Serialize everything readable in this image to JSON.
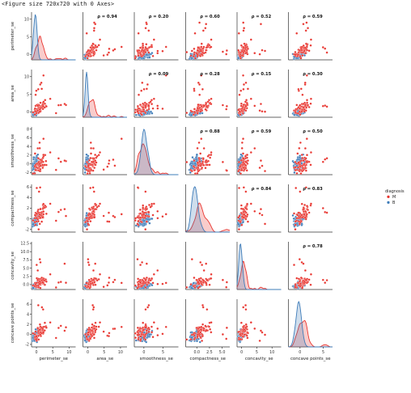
{
  "figure_caption": "<Figure size 720x720 with 0 Axes>",
  "chart_data": {
    "type": "scatter",
    "variables": [
      "perimeter_se",
      "area_se",
      "smoothness_se",
      "compactness_se",
      "concavity_se",
      "concave points_se"
    ],
    "hue": "diagnosis",
    "classes": [
      {
        "name": "M",
        "color": "#e8352f"
      },
      {
        "name": "B",
        "color": "#3e7cb9"
      }
    ],
    "correlations": [
      {
        "row": 0,
        "col": 1,
        "label": "ρ = 0.94"
      },
      {
        "row": 0,
        "col": 2,
        "label": "ρ = 0.20"
      },
      {
        "row": 0,
        "col": 3,
        "label": "ρ = 0.60"
      },
      {
        "row": 0,
        "col": 4,
        "label": "ρ = 0.52"
      },
      {
        "row": 0,
        "col": 5,
        "label": "ρ = 0.59"
      },
      {
        "row": 1,
        "col": 2,
        "label": "ρ = 0.09"
      },
      {
        "row": 1,
        "col": 3,
        "label": "ρ = 0.28"
      },
      {
        "row": 1,
        "col": 4,
        "label": "ρ = 0.15"
      },
      {
        "row": 1,
        "col": 5,
        "label": "ρ = 0.30"
      },
      {
        "row": 2,
        "col": 3,
        "label": "ρ = 0.88"
      },
      {
        "row": 2,
        "col": 4,
        "label": "ρ = 0.59"
      },
      {
        "row": 2,
        "col": 5,
        "label": "ρ = 0.50"
      },
      {
        "row": 3,
        "col": 4,
        "label": "ρ = 0.84"
      },
      {
        "row": 3,
        "col": 5,
        "label": "ρ = 0.83"
      },
      {
        "row": 4,
        "col": 5,
        "label": "ρ = 0.78"
      }
    ],
    "axes": {
      "perimeter_se": {
        "range": [
          -1.5,
          12
        ],
        "ticks": [
          0,
          5,
          10
        ]
      },
      "area_se": {
        "range": [
          -1.5,
          12
        ],
        "ticks": [
          0,
          5,
          10
        ]
      },
      "smoothness_se": {
        "range": [
          -2.5,
          9
        ],
        "ticks": [
          0,
          5
        ]
      },
      "compactness_se": {
        "range": [
          -2.2,
          6.5
        ],
        "ticks": [
          0.0,
          2.5,
          5.0
        ],
        "tick_labels": [
          "0.0",
          "2.5",
          "5.0"
        ]
      },
      "concavity_se": {
        "range": [
          -1.5,
          13
        ],
        "ticks": [
          0,
          5,
          10
        ]
      },
      "concave points_se": {
        "range": [
          -2.5,
          7
        ],
        "ticks": [
          0,
          5
        ]
      }
    },
    "y_axes": {
      "perimeter_se": {
        "range": [
          -1.5,
          12
        ],
        "ticks": [
          0,
          5,
          10
        ]
      },
      "area_se": {
        "range": [
          -1.5,
          12
        ],
        "ticks": [
          0,
          5,
          10
        ]
      },
      "smoothness_se": {
        "range": [
          -2.5,
          8.5
        ],
        "ticks": [
          -2,
          0,
          2,
          4,
          6,
          8
        ]
      },
      "compactness_se": {
        "range": [
          -2.5,
          6.5
        ],
        "ticks": [
          -2,
          0,
          2,
          4,
          6
        ]
      },
      "concavity_se": {
        "range": [
          -1.5,
          13
        ],
        "ticks": [
          0.0,
          2.5,
          5.0,
          7.5,
          10.0,
          12.5
        ],
        "tick_labels": [
          "0.0",
          "2.5",
          "5.0",
          "7.5",
          "10.0",
          "12.5"
        ]
      },
      "concave points_se": {
        "range": [
          -2.5,
          7
        ],
        "ticks": [
          -2,
          0,
          2,
          4,
          6
        ]
      }
    },
    "legend": {
      "title": "diagnosis",
      "entries": [
        "M",
        "B"
      ],
      "placement": "right"
    }
  }
}
